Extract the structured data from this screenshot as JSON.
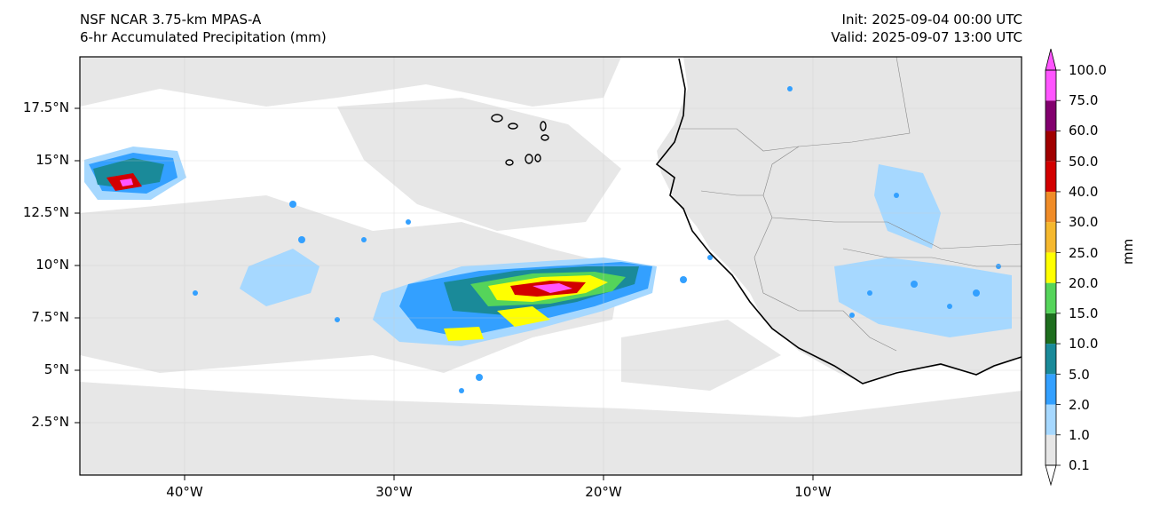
{
  "header": {
    "model": "NSF NCAR 3.75-km MPAS-A",
    "field": "6-hr Accumulated Precipitation (mm)",
    "init": "Init: 2025-09-04 00:00 UTC",
    "valid": "Valid: 2025-09-07 13:00 UTC"
  },
  "map": {
    "lat_ticks": [
      "17.5°N",
      "15°N",
      "12.5°N",
      "10°N",
      "7.5°N",
      "5°N",
      "2.5°N"
    ],
    "lon_ticks": [
      "40°W",
      "30°W",
      "20°W",
      "10°W"
    ]
  },
  "colorbar": {
    "unit_label": "mm",
    "levels": [
      "0.1",
      "1.0",
      "2.0",
      "5.0",
      "10.0",
      "15.0",
      "20.0",
      "25.0",
      "30.0",
      "40.0",
      "50.0",
      "60.0",
      "75.0",
      "100.0"
    ],
    "colors": [
      "#e6e6e6",
      "#a6d8ff",
      "#33a0ff",
      "#1a8a99",
      "#1e6e1e",
      "#55d45a",
      "#ffff00",
      "#f5b82e",
      "#f08c28",
      "#d20000",
      "#a00000",
      "#82006e",
      "#ff55ff"
    ]
  }
}
